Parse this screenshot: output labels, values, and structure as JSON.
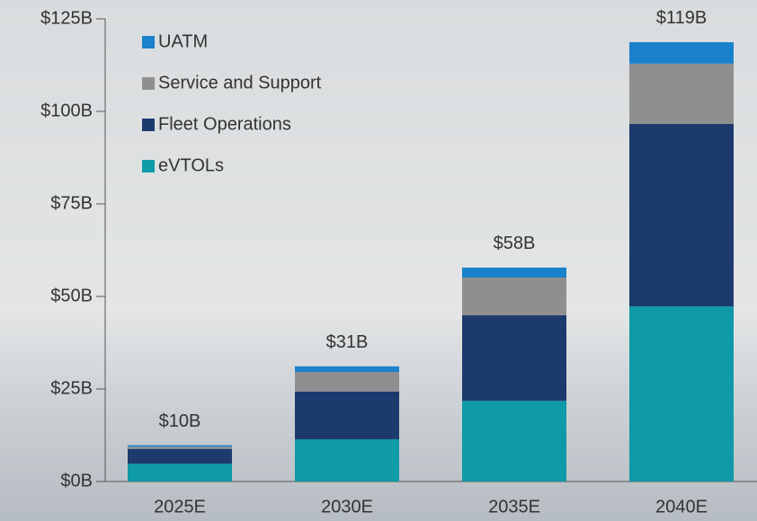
{
  "chart_data": {
    "type": "stacked_bar",
    "categories": [
      "2025E",
      "2030E",
      "2035E",
      "2040E"
    ],
    "series": [
      {
        "name": "eVTOLs",
        "color": "#0e9aa7",
        "values": [
          4.8,
          11.4,
          21.8,
          47.3
        ]
      },
      {
        "name": "Fleet Operations",
        "color": "#1d3a6e",
        "values": [
          4.0,
          12.9,
          23.1,
          49.3
        ]
      },
      {
        "name": "Service and Support",
        "color": "#8f8f8f",
        "values": [
          0.6,
          5.3,
          10.2,
          16.3
        ]
      },
      {
        "name": "UATM",
        "color": "#1a82cc",
        "values": [
          0.4,
          1.5,
          2.7,
          5.8
        ]
      }
    ],
    "totals": {
      "values": [
        10,
        31,
        58,
        119
      ],
      "value_labels": [
        "$10B",
        "$31B",
        "$58B",
        "$119B"
      ]
    },
    "ylim": [
      0,
      125
    ],
    "yticks": [
      {
        "value": 0,
        "label": "$0B"
      },
      {
        "value": 25,
        "label": "$25B"
      },
      {
        "value": 50,
        "label": "$50B"
      },
      {
        "value": 75,
        "label": "$75B"
      },
      {
        "value": 100,
        "label": "$100B"
      },
      {
        "value": 125,
        "label": "$125B"
      }
    ],
    "legend": "top-left"
  }
}
